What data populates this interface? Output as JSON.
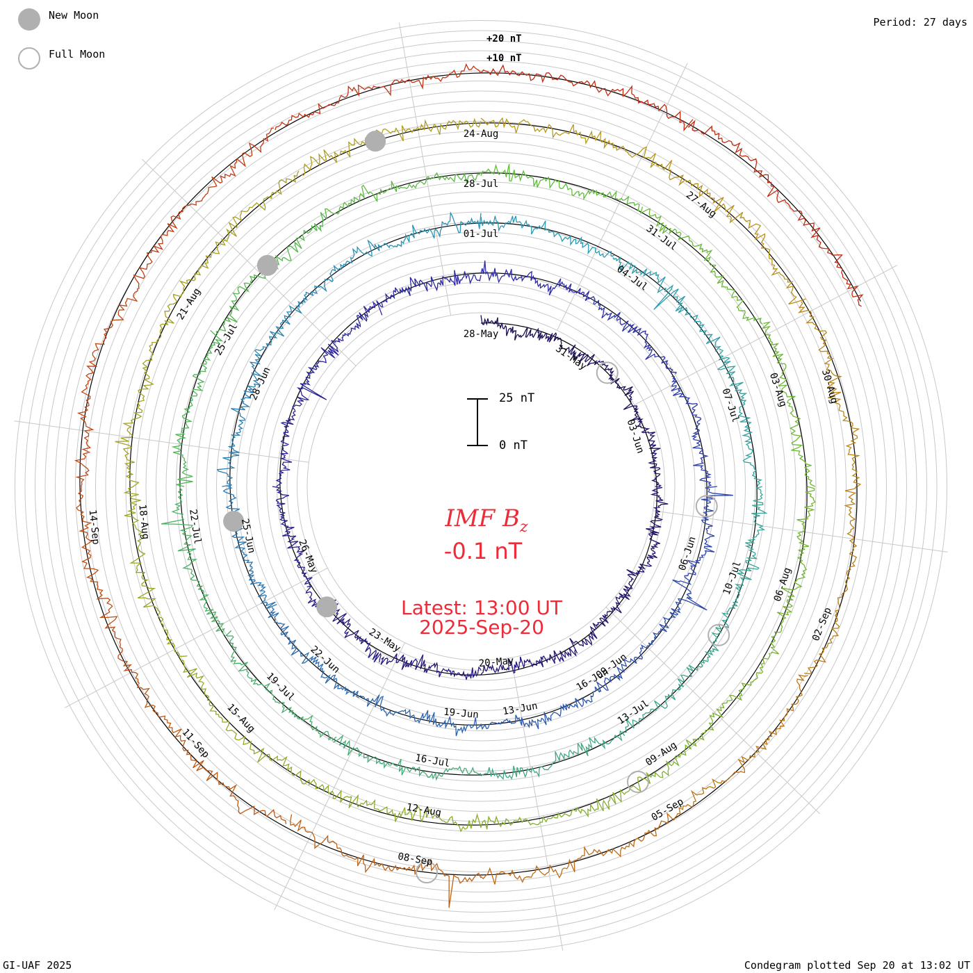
{
  "legend": {
    "new_moon": "New Moon",
    "full_moon": "Full Moon",
    "period": "Period: 27 days"
  },
  "scale": {
    "top_label": "+20 nT",
    "second_label": "+10 nT",
    "bar_top": "25 nT",
    "bar_bottom": "0 nT"
  },
  "center": {
    "title": "IMF B",
    "title_sub": "z",
    "value": "-0.1 nT",
    "latest_line1": "Latest: 13:00 UT",
    "latest_line2": "2025-Sep-20"
  },
  "footer": {
    "left": "GI-UAF 2025",
    "right": "Condegram plotted Sep 20 at 13:02 UT"
  },
  "chart_data": {
    "type": "line",
    "variant": "condegram spiral",
    "title": "IMF Bz",
    "units": "nT",
    "period_days": 27,
    "current_value": -0.1,
    "rotations": [
      {
        "start": "2025-May-20",
        "color": "#1a0a52",
        "dates": [
          "20-May",
          "23-May",
          "26-May"
        ]
      },
      {
        "start": "2025-Jun-16",
        "color": "#2e2aa8",
        "dates": [
          "16-Jun",
          "19-Jun",
          "22-Jun",
          "25-Jun",
          "28-Jun"
        ]
      },
      {
        "start": "2025-Jul-13",
        "color": "#2a9bb5",
        "dates": [
          "01-Jul",
          "04-Jul",
          "07-Jul",
          "10-Jul",
          "13-Jul",
          "16-Jul",
          "19-Jul",
          "22-Jul",
          "25-Jul",
          "28-Jul"
        ]
      },
      {
        "start": "2025-Aug-09",
        "color": "#5fbd3a",
        "dates": [
          "31-Jul",
          "03-Aug",
          "06-Aug",
          "09-Aug",
          "12-Aug",
          "15-Aug",
          "18-Aug",
          "21-Aug",
          "24-Aug"
        ]
      },
      {
        "start": "2025-Sep-05",
        "color": "#b89a1a",
        "dates": [
          "27-Aug",
          "30-Aug",
          "02-Sep",
          "05-Sep",
          "08-Sep",
          "11-Sep",
          "14-Sep"
        ]
      },
      {
        "start": "2025-Sep-20",
        "color": "#c22a10",
        "dates": []
      }
    ],
    "date_labels": [
      {
        "label": "20-May",
        "ring": 0,
        "angle_deg": 175
      },
      {
        "label": "23-May",
        "ring": 0,
        "angle_deg": 212
      },
      {
        "label": "26-May",
        "ring": 0,
        "angle_deg": 248
      },
      {
        "label": "28-May",
        "ring": 0,
        "angle_deg": 0
      },
      {
        "label": "31-May",
        "ring": 0,
        "angle_deg": 35
      },
      {
        "label": "03-Jun",
        "ring": 0,
        "angle_deg": 72
      },
      {
        "label": "06-Jun",
        "ring": 1,
        "angle_deg": 108
      },
      {
        "label": "09-Jun",
        "ring": 1,
        "angle_deg": 144
      },
      {
        "label": "13-Jun",
        "ring": 1,
        "angle_deg": 170
      },
      {
        "label": "16-Jun",
        "ring": 1,
        "angle_deg": 150
      },
      {
        "label": "19-Jun",
        "ring": 1,
        "angle_deg": 185
      },
      {
        "label": "22-Jun",
        "ring": 1,
        "angle_deg": 222
      },
      {
        "label": "25-Jun",
        "ring": 1,
        "angle_deg": 258
      },
      {
        "label": "28-Jun",
        "ring": 1,
        "angle_deg": 295
      },
      {
        "label": "01-Jul",
        "ring": 2,
        "angle_deg": 0
      },
      {
        "label": "04-Jul",
        "ring": 2,
        "angle_deg": 36
      },
      {
        "label": "07-Jul",
        "ring": 2,
        "angle_deg": 72
      },
      {
        "label": "10-Jul",
        "ring": 2,
        "angle_deg": 110
      },
      {
        "label": "13-Jul",
        "ring": 2,
        "angle_deg": 146
      },
      {
        "label": "16-Jul",
        "ring": 2,
        "angle_deg": 190
      },
      {
        "label": "19-Jul",
        "ring": 2,
        "angle_deg": 225
      },
      {
        "label": "22-Jul",
        "ring": 2,
        "angle_deg": 262
      },
      {
        "label": "25-Jul",
        "ring": 2,
        "angle_deg": 300
      },
      {
        "label": "28-Jul",
        "ring": 3,
        "angle_deg": 0
      },
      {
        "label": "31-Jul",
        "ring": 3,
        "angle_deg": 36
      },
      {
        "label": "03-Aug",
        "ring": 3,
        "angle_deg": 72
      },
      {
        "label": "06-Aug",
        "ring": 3,
        "angle_deg": 108
      },
      {
        "label": "09-Aug",
        "ring": 3,
        "angle_deg": 146
      },
      {
        "label": "12-Aug",
        "ring": 3,
        "angle_deg": 190
      },
      {
        "label": "15-Aug",
        "ring": 3,
        "angle_deg": 226
      },
      {
        "label": "18-Aug",
        "ring": 3,
        "angle_deg": 264
      },
      {
        "label": "21-Aug",
        "ring": 3,
        "angle_deg": 302
      },
      {
        "label": "24-Aug",
        "ring": 4,
        "angle_deg": 0
      },
      {
        "label": "27-Aug",
        "ring": 4,
        "angle_deg": 38
      },
      {
        "label": "30-Aug",
        "ring": 4,
        "angle_deg": 74
      },
      {
        "label": "02-Sep",
        "ring": 4,
        "angle_deg": 112
      },
      {
        "label": "05-Sep",
        "ring": 4,
        "angle_deg": 150
      },
      {
        "label": "08-Sep",
        "ring": 4,
        "angle_deg": 190
      },
      {
        "label": "11-Sep",
        "ring": 4,
        "angle_deg": 228
      },
      {
        "label": "14-Sep",
        "ring": 4,
        "angle_deg": 264
      }
    ],
    "new_moons": [
      {
        "ring": 0,
        "angle_deg": 232
      },
      {
        "ring": 1,
        "angle_deg": 262
      },
      {
        "ring": 2,
        "angle_deg": 316
      },
      {
        "ring": 3,
        "angle_deg": 343
      }
    ],
    "full_moons": [
      {
        "ring": 0,
        "angle_deg": 48
      },
      {
        "ring": 1,
        "angle_deg": 95
      },
      {
        "ring": 2,
        "angle_deg": 122
      },
      {
        "ring": 3,
        "angle_deg": 152
      },
      {
        "ring": 4,
        "angle_deg": 188
      }
    ]
  }
}
